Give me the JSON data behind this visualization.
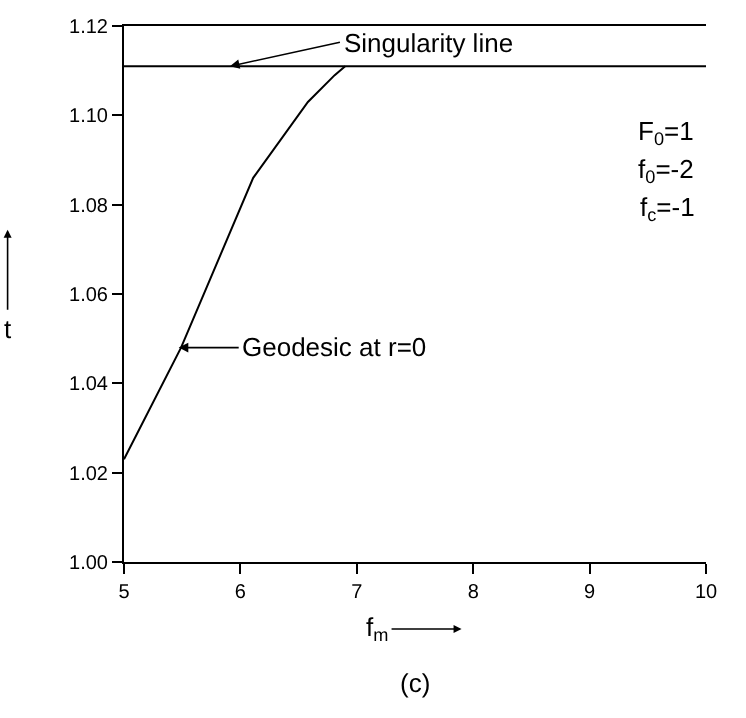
{
  "chart_data": {
    "type": "line",
    "xlabel": "f$_{m}$",
    "ylabel": "t",
    "x": [
      5,
      5.49,
      6.11,
      6.58,
      6.81,
      6.9
    ],
    "series": [
      {
        "color": "#000000",
        "values": [
          1.023,
          1.048,
          1.086,
          1.103,
          1.109,
          1.111
        ]
      }
    ],
    "xlim": [
      5,
      10
    ],
    "xticks": [
      5,
      6,
      7,
      8,
      9,
      10
    ],
    "ylim": [
      1.0,
      1.12
    ],
    "yticks": [
      {
        "value": 1.0,
        "label": "1.00"
      },
      {
        "value": 1.02,
        "label": "1.02"
      },
      {
        "value": 1.04,
        "label": "1.04"
      },
      {
        "value": 1.06,
        "label": "1.06"
      },
      {
        "value": 1.08,
        "label": "1.08"
      },
      {
        "value": 1.1,
        "label": "1.10"
      },
      {
        "value": 1.12,
        "label": "1.12"
      }
    ],
    "ref_lines": [
      {
        "axis": "y",
        "value": 1.111,
        "color": "#000000"
      }
    ],
    "annotations": [
      {
        "text": "Singularity line",
        "x": 5.91,
        "y": 1.111
      },
      {
        "text": "Geodesic at r=0",
        "x": 5.47,
        "y": 1.048
      },
      "F$_{0}$=1",
      "f$_{0}$=-2",
      "f$_{c}$=-1",
      "(c)"
    ],
    "marker": "none",
    "line_style": "solid"
  }
}
